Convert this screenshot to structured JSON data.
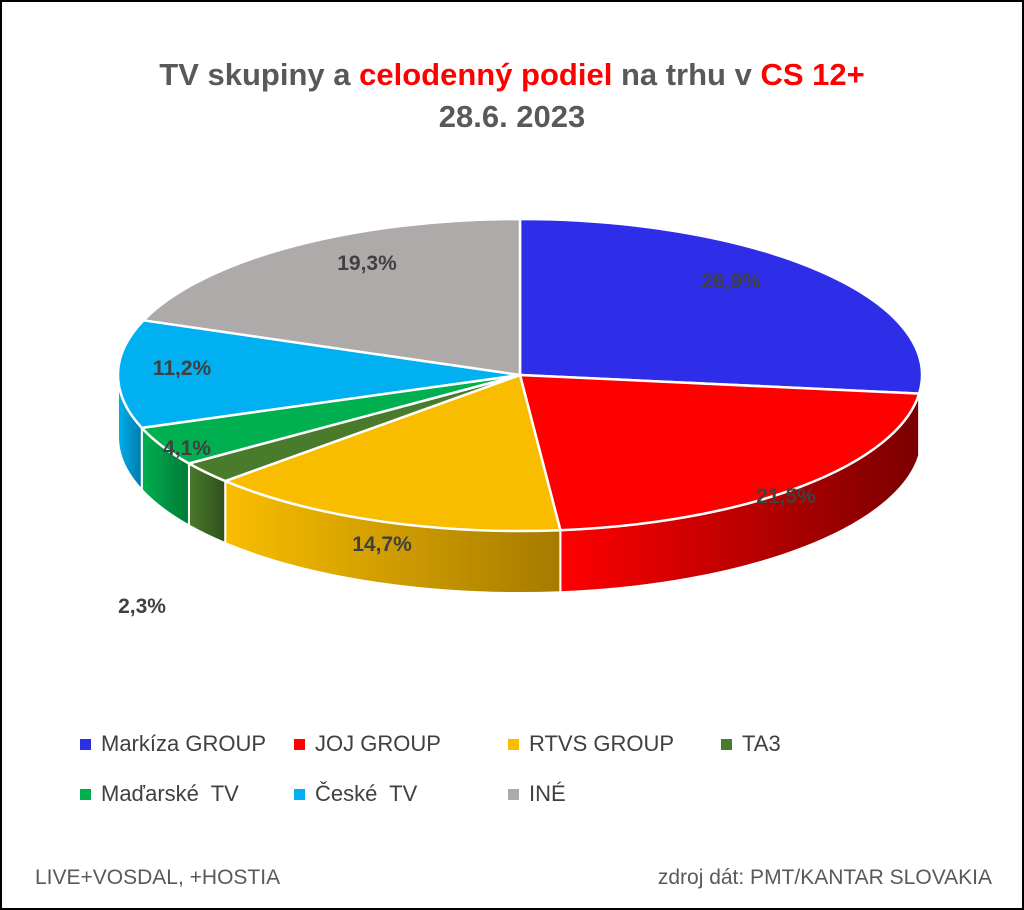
{
  "title": {
    "part1": "TV skupiny a ",
    "part2": "celodenný podiel",
    "part3": " na trhu v ",
    "part4": "CS 12+",
    "line2": "28.6. 2023"
  },
  "colors": {
    "title_text": "#595959",
    "title_highlight": "#ff0000"
  },
  "chart_data": {
    "type": "pie",
    "style": "3d",
    "title": "TV skupiny a celodenný podiel na trhu v CS 12+ 28.6. 2023",
    "unit": "%",
    "legend_position": "bottom",
    "slices": [
      {
        "name": "Markíza GROUP",
        "value": 26.9,
        "label": "26,9%",
        "color": "#2e2ee8",
        "side_color": "#15158c"
      },
      {
        "name": "JOJ GROUP",
        "value": 21.5,
        "label": "21,5%",
        "color": "#ff0000",
        "side_color": "#7a0000"
      },
      {
        "name": "RTVS GROUP",
        "value": 14.7,
        "label": "14,7%",
        "color": "#f9bd00",
        "side_color": "#a57b00"
      },
      {
        "name": "TA3",
        "value": 2.3,
        "label": "2,3%",
        "color": "#4a7a2c",
        "side_color": "#2f4f1c"
      },
      {
        "name": "Maďarské  TV",
        "value": 4.1,
        "label": "4,1%",
        "color": "#00b050",
        "side_color": "#007a36"
      },
      {
        "name": "České  TV",
        "value": 11.2,
        "label": "11,2%",
        "color": "#00b0f0",
        "side_color": "#0078a8"
      },
      {
        "name": "INÉ",
        "value": 19.3,
        "label": "19,3%",
        "color": "#aeaaaa",
        "side_color": "#6e6a6a"
      }
    ]
  },
  "footer": {
    "left": "LIVE+VOSDAL, +HOSTIA",
    "right": "zdroj dát: PMT/KANTAR SLOVAKIA"
  }
}
